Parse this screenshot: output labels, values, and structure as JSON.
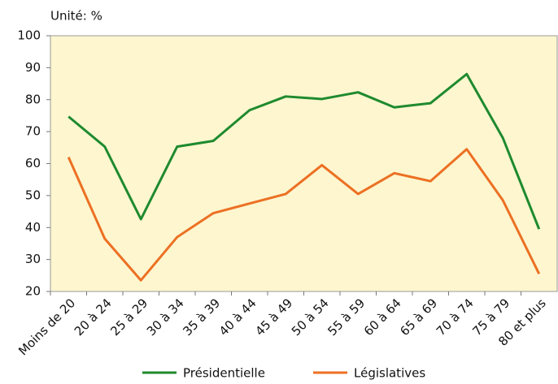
{
  "chart_data": {
    "type": "line",
    "subtitle": "Unité: %",
    "categories": [
      "Moins de 20",
      "20 à 24",
      "25 à 29",
      "30 à 34",
      "35 à 39",
      "40 à 44",
      "45 à 49",
      "50 à 54",
      "55 à 59",
      "60 à 64",
      "65 à 69",
      "70 à 74",
      "75 à 79",
      "80 et plus"
    ],
    "series": [
      {
        "name": "Présidentielle",
        "color": "#1e8a2e",
        "values": [
          74.7,
          65.3,
          42.6,
          65.3,
          67.1,
          76.7,
          81.0,
          80.2,
          82.3,
          77.6,
          78.9,
          88.0,
          68.0,
          39.5
        ]
      },
      {
        "name": "Législatives",
        "color": "#ec7023",
        "values": [
          62.0,
          36.5,
          23.5,
          37.0,
          44.5,
          47.5,
          50.5,
          59.5,
          50.5,
          57.0,
          54.5,
          64.5,
          48.5,
          25.5
        ]
      }
    ],
    "ylim": [
      20,
      100
    ],
    "yticks": [
      20,
      30,
      40,
      50,
      60,
      70,
      80,
      90,
      100
    ],
    "grid": false,
    "legend": "bottom"
  }
}
